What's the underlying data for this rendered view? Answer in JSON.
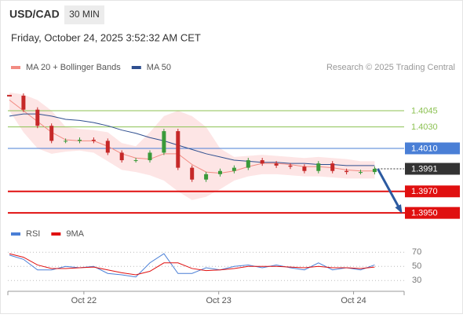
{
  "header": {
    "symbol": "USD/CAD",
    "interval": "30 MIN",
    "timestamp": "Friday, October 24, 2025 3:52:32 AM CET"
  },
  "chart_data": [
    {
      "type": "financial",
      "source": "Research © 2025 Trading Central",
      "x": [
        0,
        5,
        10,
        15,
        20,
        25,
        30,
        35,
        40,
        45,
        50,
        55,
        60,
        65,
        70,
        75,
        80,
        85,
        90,
        95,
        100,
        105,
        110,
        115,
        120,
        125,
        130
      ],
      "xlim": [
        0,
        140.5
      ],
      "ylim": [
        1.3945,
        1.4064
      ],
      "price": {
        "up_color": "#3a9a3a",
        "down_color": "#c62828",
        "values": [
          1.4059,
          1.4046,
          1.4031,
          1.4017,
          1.4017,
          1.4018,
          1.4017,
          1.4006,
          1.3999,
          1.3999,
          1.4006,
          1.4026,
          1.3992,
          1.3981,
          1.3986,
          1.3989,
          1.3992,
          1.3999,
          1.3996,
          1.3994,
          1.3993,
          1.3989,
          1.3996,
          1.3989,
          1.3988,
          1.3988,
          1.3991
        ]
      },
      "series": [
        {
          "name": "MA 20 + Bollinger Bands",
          "color": "#f28b82",
          "band_color": "#fde0e0",
          "values": [
            1.4055,
            1.4045,
            1.4035,
            1.4025,
            1.4018,
            1.4017,
            1.4017,
            1.4012,
            1.4005,
            1.4001,
            1.4,
            1.4005,
            1.4005,
            1.3995,
            1.3988,
            1.3987,
            1.3989,
            1.3993,
            1.3996,
            1.3996,
            1.3995,
            1.3993,
            1.3993,
            1.3992,
            1.399,
            1.3989,
            1.3989
          ],
          "upper": [
            1.4062,
            1.406,
            1.4055,
            1.4045,
            1.403,
            1.4028,
            1.4027,
            1.4025,
            1.4015,
            1.4012,
            1.4025,
            1.404,
            1.4045,
            1.404,
            1.403,
            1.401,
            1.4002,
            1.4003,
            1.4004,
            1.4003,
            1.4002,
            1.4001,
            1.4002,
            1.4001,
            1.4,
            1.3998,
            1.3998
          ],
          "lower": [
            1.4045,
            1.4025,
            1.401,
            1.4005,
            1.4007,
            1.4008,
            1.4006,
            1.3998,
            1.399,
            1.3988,
            1.3985,
            1.398,
            1.397,
            1.3962,
            1.3965,
            1.3972,
            1.398,
            1.3984,
            1.3986,
            1.3986,
            1.3985,
            1.3984,
            1.3984,
            1.3983,
            1.3982,
            1.3982,
            1.3982
          ]
        },
        {
          "name": "MA 50",
          "color": "#2f4f8f",
          "values": [
            1.404,
            1.4042,
            1.4042,
            1.404,
            1.4037,
            1.4036,
            1.4034,
            1.4031,
            1.4027,
            1.4024,
            1.402,
            1.4017,
            1.4013,
            1.4009,
            1.4005,
            1.4002,
            1.3999,
            1.3998,
            1.3997,
            1.3997,
            1.3996,
            1.3996,
            1.3995,
            1.3995,
            1.3994,
            1.3994,
            1.3994
          ]
        }
      ],
      "levels": [
        {
          "value": 1.4045,
          "label": "1.4045",
          "color": "#8cc152",
          "boxed": false,
          "dotted": false
        },
        {
          "value": 1.403,
          "label": "1.4030",
          "color": "#8cc152",
          "boxed": false,
          "dotted": false
        },
        {
          "value": 1.401,
          "label": "1.4010",
          "color": "#4a7fd6",
          "boxed": true,
          "dotted": false
        },
        {
          "value": 1.3991,
          "label": "1.3991",
          "color": "#333333",
          "boxed": true,
          "dotted": true
        },
        {
          "value": 1.397,
          "label": "1.3970",
          "color": "#e01010",
          "boxed": true,
          "dotted": false
        },
        {
          "value": 1.395,
          "label": "1.3950",
          "color": "#e01010",
          "boxed": true,
          "dotted": false
        }
      ],
      "arrow_color": "#2c5aa0"
    },
    {
      "type": "line",
      "x": [
        0,
        5,
        10,
        15,
        20,
        25,
        30,
        35,
        40,
        45,
        50,
        55,
        60,
        65,
        70,
        75,
        80,
        85,
        90,
        95,
        100,
        105,
        110,
        115,
        120,
        125,
        130
      ],
      "xlim": [
        0,
        140.5
      ],
      "xticks": [
        {
          "value": 26.5,
          "label": "Oct 22"
        },
        {
          "value": 74.5,
          "label": "Oct 23"
        },
        {
          "value": 122.5,
          "label": "Oct 24"
        }
      ],
      "ylim": [
        18,
        77
      ],
      "yticks": [
        30,
        50,
        70
      ],
      "grid": true,
      "series": [
        {
          "name": "RSI",
          "color": "#4a7fd6",
          "values": [
            66,
            60,
            45,
            45,
            50,
            48,
            50,
            40,
            38,
            35,
            55,
            68,
            40,
            40,
            48,
            45,
            50,
            52,
            48,
            52,
            48,
            45,
            55,
            45,
            48,
            45,
            52
          ]
        },
        {
          "name": "9MA",
          "color": "#e01010",
          "values": [
            68,
            63,
            52,
            47,
            47,
            48,
            49,
            45,
            41,
            38,
            43,
            55,
            55,
            47,
            44,
            45,
            47,
            50,
            50,
            50,
            49,
            48,
            50,
            48,
            48,
            47,
            49
          ]
        }
      ]
    }
  ]
}
